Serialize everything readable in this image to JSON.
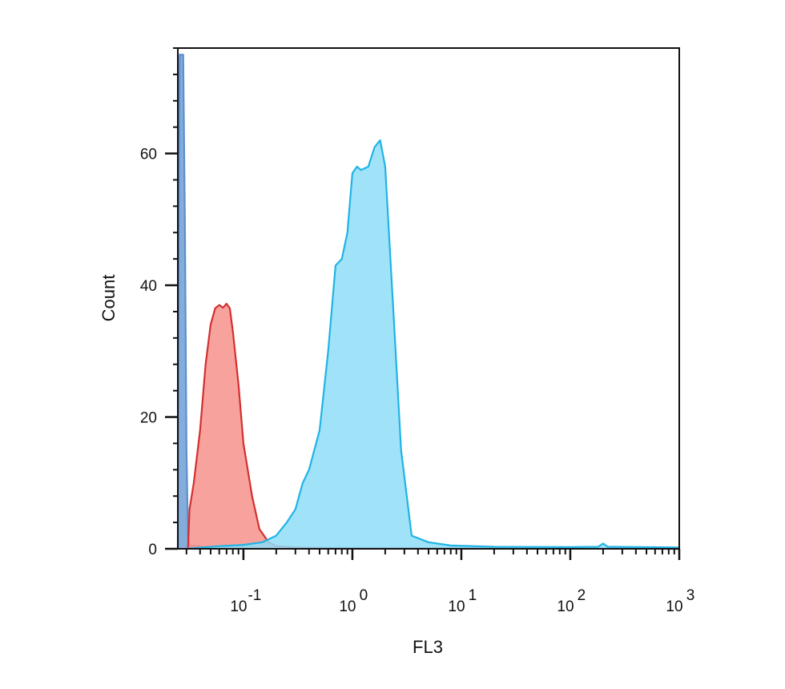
{
  "chart_data": {
    "type": "area",
    "title": "",
    "xlabel": "FL3",
    "ylabel": "Count",
    "x_scale": "log",
    "xlim": [
      0.025,
      1000
    ],
    "ylim": [
      0,
      76
    ],
    "grid": false,
    "legend": "none",
    "x_ticks": [
      {
        "value": 0.1,
        "base": "10",
        "exp": "-1"
      },
      {
        "value": 1,
        "base": "10",
        "exp": "0"
      },
      {
        "value": 10,
        "base": "10",
        "exp": "1"
      },
      {
        "value": 100,
        "base": "10",
        "exp": "2"
      },
      {
        "value": 1000,
        "base": "10",
        "exp": "3"
      }
    ],
    "y_ticks": [
      0,
      20,
      40,
      60
    ],
    "series": [
      {
        "color": "#5b8fd0",
        "fill": "#6f9fd6",
        "points": [
          [
            0.025,
            0
          ],
          [
            0.0255,
            50
          ],
          [
            0.026,
            75
          ],
          [
            0.028,
            75
          ],
          [
            0.029,
            50
          ],
          [
            0.03,
            15
          ],
          [
            0.031,
            2
          ],
          [
            0.032,
            0.5
          ],
          [
            0.045,
            0.3
          ],
          [
            0.1,
            0.2
          ],
          [
            1000,
            0
          ]
        ]
      },
      {
        "color": "#d42f2f",
        "fill": "#f7928c",
        "points": [
          [
            0.031,
            0
          ],
          [
            0.032,
            6
          ],
          [
            0.035,
            10
          ],
          [
            0.04,
            18
          ],
          [
            0.045,
            28
          ],
          [
            0.05,
            34
          ],
          [
            0.055,
            36.5
          ],
          [
            0.06,
            37
          ],
          [
            0.065,
            36.6
          ],
          [
            0.07,
            37.2
          ],
          [
            0.075,
            36.5
          ],
          [
            0.08,
            33
          ],
          [
            0.09,
            25
          ],
          [
            0.1,
            16
          ],
          [
            0.12,
            8
          ],
          [
            0.14,
            3
          ],
          [
            0.17,
            1
          ],
          [
            0.2,
            0.4
          ],
          [
            0.3,
            0.2
          ],
          [
            0.5,
            0.1
          ],
          [
            1,
            0.1
          ],
          [
            1000,
            0
          ]
        ]
      },
      {
        "color": "#1fb4e6",
        "fill": "#8fddf7",
        "points": [
          [
            0.03,
            0
          ],
          [
            0.06,
            0.4
          ],
          [
            0.1,
            0.6
          ],
          [
            0.15,
            1
          ],
          [
            0.2,
            2
          ],
          [
            0.25,
            4
          ],
          [
            0.3,
            6
          ],
          [
            0.35,
            10
          ],
          [
            0.4,
            12
          ],
          [
            0.5,
            18
          ],
          [
            0.6,
            30
          ],
          [
            0.7,
            43
          ],
          [
            0.8,
            44
          ],
          [
            0.9,
            48
          ],
          [
            1.0,
            57
          ],
          [
            1.1,
            58
          ],
          [
            1.2,
            57.5
          ],
          [
            1.4,
            58
          ],
          [
            1.6,
            61
          ],
          [
            1.8,
            62
          ],
          [
            2.0,
            58
          ],
          [
            2.4,
            35
          ],
          [
            2.8,
            15
          ],
          [
            3.5,
            2
          ],
          [
            5,
            1
          ],
          [
            8,
            0.5
          ],
          [
            20,
            0.3
          ],
          [
            100,
            0.25
          ],
          [
            180,
            0.3
          ],
          [
            200,
            0.8
          ],
          [
            220,
            0.3
          ],
          [
            1000,
            0.2
          ]
        ]
      }
    ]
  }
}
